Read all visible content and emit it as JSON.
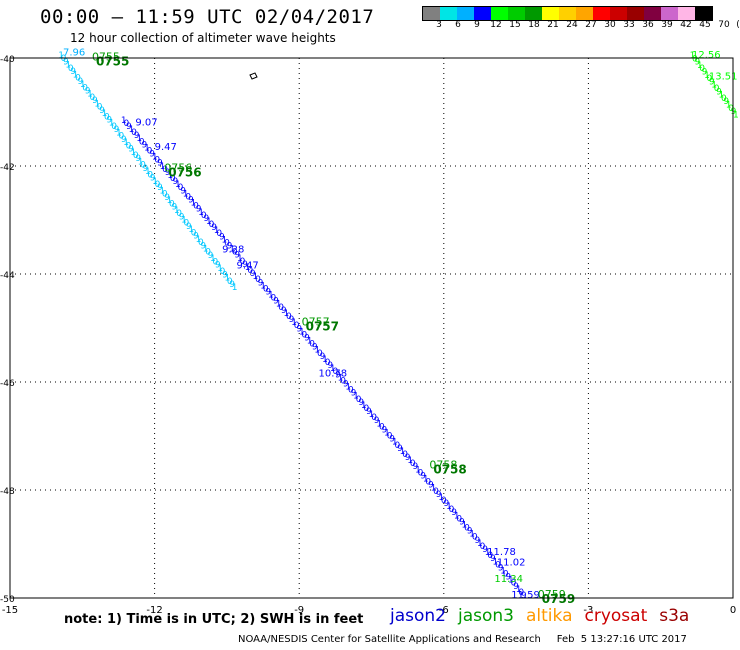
{
  "header": {
    "title": "00:00 — 11:59 UTC 02/04/2017",
    "subtitle": "12 hour collection of altimeter wave heights"
  },
  "color_scale": {
    "labels": [
      "3",
      "6",
      "9",
      "12",
      "15",
      "18",
      "21",
      "24",
      "27",
      "30",
      "33",
      "36",
      "39",
      "42",
      "45",
      "70",
      "(ft)"
    ],
    "colors": [
      "#808080",
      "#00e5e5",
      "#00b0ff",
      "#0000ff",
      "#00ff00",
      "#00cc00",
      "#009900",
      "#ffff00",
      "#ffd000",
      "#ffa500",
      "#ff0000",
      "#cc0000",
      "#990000",
      "#800040",
      "#cc66cc",
      "#ffb6e6",
      "#000000"
    ]
  },
  "footer": {
    "note": "note: 1) Time is in UTC; 2) SWH is in feet",
    "credit": "NOAA/NESDIS Center for Satellite Applications and Research     Feb  5 13:27:16 UTC 2017",
    "legend": [
      {
        "name": "jason2",
        "color": "#0000cc"
      },
      {
        "name": "jason3",
        "color": "#009900"
      },
      {
        "name": "altika",
        "color": "#ff9900"
      },
      {
        "name": "cryosat",
        "color": "#cc0000"
      },
      {
        "name": "s3a",
        "color": "#990000"
      }
    ]
  },
  "chart_data": {
    "type": "scatter",
    "title": "12 hour collection of altimeter wave heights",
    "xlim": [
      -15,
      0
    ],
    "ylim": [
      -50,
      -40
    ],
    "x_ticks": [
      -15,
      -12,
      -9,
      -6,
      -3,
      0
    ],
    "y_ticks": [
      -40,
      -42,
      -44,
      -46,
      -48,
      -50
    ],
    "grid": true,
    "time_labels": [
      {
        "text": "0755",
        "x": -13.3,
        "y": -40.05
      },
      {
        "text": "0756",
        "x": -11.8,
        "y": -42.1
      },
      {
        "text": "0757",
        "x": -8.95,
        "y": -44.95
      },
      {
        "text": "0758",
        "x": -6.3,
        "y": -47.6
      },
      {
        "text": "0759",
        "x": -4.05,
        "y": -50.0
      }
    ],
    "wave_heights": [
      {
        "value": "7.96",
        "x": -13.9,
        "y": -39.95,
        "color": "#00b0ff"
      },
      {
        "value": "9.07",
        "x": -12.4,
        "y": -41.25,
        "color": "#0000ff"
      },
      {
        "value": "9.47",
        "x": -12.0,
        "y": -41.7,
        "color": "#0000ff"
      },
      {
        "value": "9.28",
        "x": -10.6,
        "y": -43.6,
        "color": "#0000ff"
      },
      {
        "value": "9.47",
        "x": -10.3,
        "y": -43.9,
        "color": "#0000ff"
      },
      {
        "value": "10.78",
        "x": -8.6,
        "y": -45.9,
        "color": "#0000ff"
      },
      {
        "value": "11.78",
        "x": -5.1,
        "y": -49.2,
        "color": "#0000ff"
      },
      {
        "value": "11.02",
        "x": -4.9,
        "y": -49.4,
        "color": "#0000ff"
      },
      {
        "value": "11.34",
        "x": -4.95,
        "y": -49.7,
        "color": "#00cc00"
      },
      {
        "value": "11.59",
        "x": -4.6,
        "y": -50.0,
        "color": "#0000ff"
      },
      {
        "value": "12.56",
        "x": -0.85,
        "y": -40.0,
        "color": "#00ff00"
      },
      {
        "value": "13.51",
        "x": -0.5,
        "y": -40.4,
        "color": "#00ff00"
      }
    ],
    "tracks": [
      {
        "name": "main-track-light",
        "color": "#00c8ff",
        "start": [
          -14.0,
          -40.0
        ],
        "end": [
          -10.4,
          -44.3
        ]
      },
      {
        "name": "main-track-dark",
        "color": "#0000ff",
        "start": [
          -12.7,
          -41.2
        ],
        "end": [
          -4.4,
          -50.0
        ]
      },
      {
        "name": "corner-track",
        "color": "#00ff00",
        "start": [
          -0.9,
          -40.0
        ],
        "end": [
          0,
          -41.1
        ]
      }
    ]
  }
}
